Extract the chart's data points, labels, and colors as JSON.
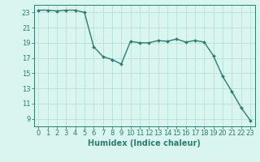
{
  "x": [
    0,
    1,
    2,
    3,
    4,
    5,
    6,
    7,
    8,
    9,
    10,
    11,
    12,
    13,
    14,
    15,
    16,
    17,
    18,
    19,
    20,
    21,
    22,
    23
  ],
  "y": [
    23.3,
    23.3,
    23.2,
    23.3,
    23.3,
    23.0,
    18.5,
    17.2,
    16.8,
    16.2,
    19.2,
    19.0,
    19.0,
    19.3,
    19.2,
    19.5,
    19.1,
    19.3,
    19.1,
    17.3,
    14.6,
    12.6,
    10.5,
    8.8
  ],
  "line_color": "#2e7d6e",
  "marker": "D",
  "markersize": 2.0,
  "linewidth": 1.0,
  "bg_color": "#d8f5f0",
  "grid_color": "#b8e0da",
  "xlabel": "Humidex (Indice chaleur)",
  "xlabel_fontsize": 7,
  "tick_fontsize": 6,
  "ylim": [
    8,
    24
  ],
  "xlim": [
    -0.5,
    23.5
  ],
  "yticks": [
    9,
    11,
    13,
    15,
    17,
    19,
    21,
    23
  ],
  "xticks": [
    0,
    1,
    2,
    3,
    4,
    5,
    6,
    7,
    8,
    9,
    10,
    11,
    12,
    13,
    14,
    15,
    16,
    17,
    18,
    19,
    20,
    21,
    22,
    23
  ]
}
